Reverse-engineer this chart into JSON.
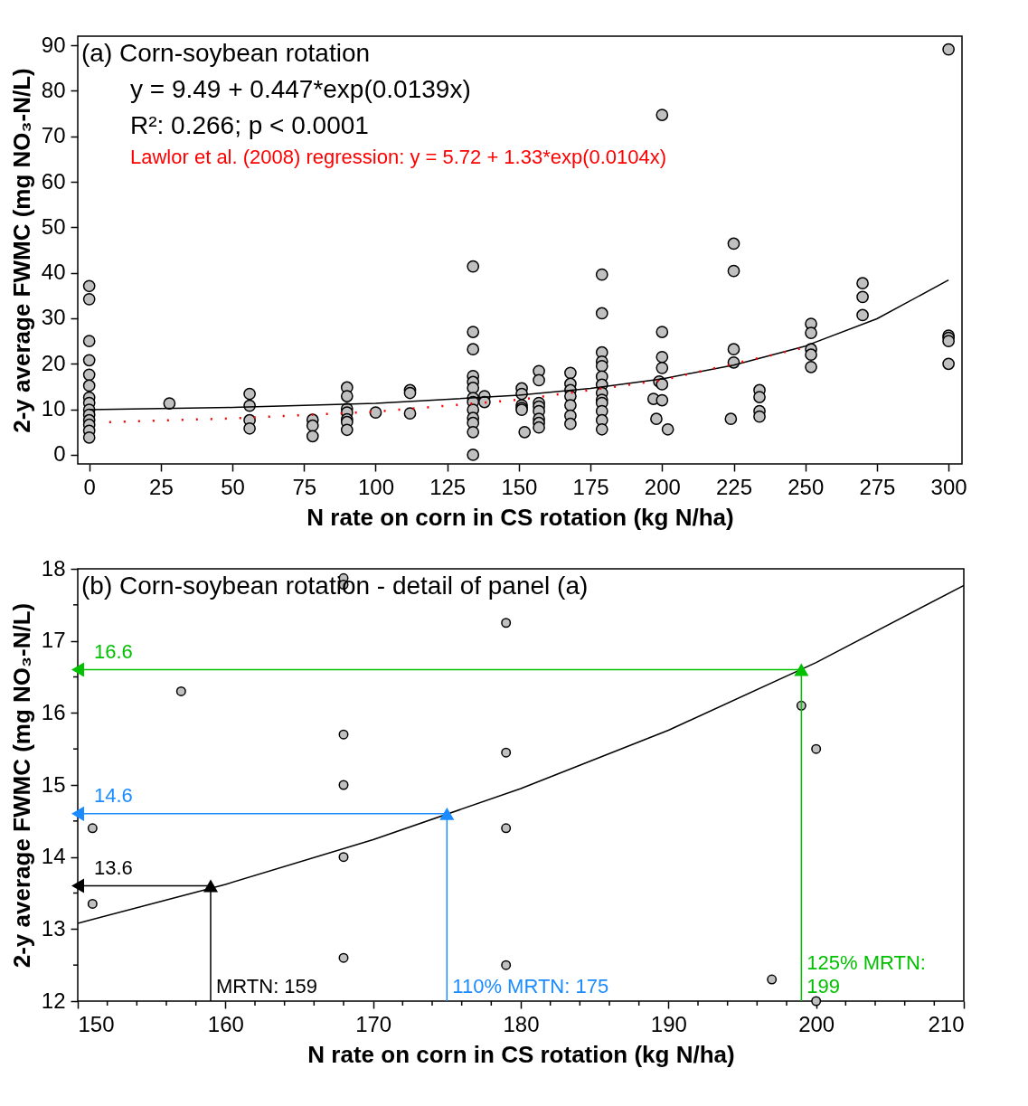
{
  "chart_data": [
    {
      "type": "scatter",
      "title": "(a) Corn-soybean rotation",
      "xlabel": "N rate on corn in CS rotation (kg N/ha)",
      "ylabel": "2-y average FWMC (mg NO₃-N/L)",
      "annotations": [
        "y = 9.49 + 0.447*exp(0.0139x)",
        "R²: 0.266; p < 0.0001",
        "Lawlor et al. (2008) regression: y = 5.72 + 1.33*exp(0.0104x)"
      ],
      "xlim": [
        -4,
        304.7
      ],
      "ylim": [
        -2,
        92
      ],
      "xticks": [
        0,
        25,
        50,
        75,
        100,
        125,
        150,
        175,
        200,
        225,
        250,
        275,
        300
      ],
      "yticks": [
        0,
        10,
        20,
        30,
        40,
        50,
        60,
        70,
        80,
        90
      ],
      "grid": false,
      "marker": "circle",
      "series": [
        {
          "color": "#c0c0c0",
          "x": [
            0,
            0,
            0,
            0,
            0,
            0,
            0,
            0,
            0,
            0,
            0,
            0,
            0,
            0,
            28,
            56,
            56,
            56,
            56,
            78,
            78,
            78,
            90,
            90,
            90,
            90,
            90,
            90,
            90,
            100,
            112,
            112,
            112,
            134,
            134,
            134,
            134,
            134,
            134,
            134,
            134,
            134,
            134,
            134,
            134,
            134,
            138,
            138,
            151,
            151,
            151,
            151,
            151,
            152,
            157,
            157,
            157,
            157,
            157,
            157,
            157,
            157,
            168,
            168,
            168,
            168,
            168,
            168,
            168,
            179,
            179,
            179,
            179,
            179,
            179,
            179,
            179,
            179,
            179,
            179,
            179,
            179,
            197,
            198,
            199,
            200,
            200,
            200,
            200,
            200,
            200,
            202,
            224,
            225,
            225,
            225,
            225,
            234,
            234,
            234,
            234,
            252,
            252,
            252,
            252,
            252,
            270,
            270,
            270,
            300,
            300,
            300,
            300,
            300
          ],
          "values": [
            37.1,
            34.2,
            25.0,
            20.8,
            17.6,
            15.2,
            12.6,
            11.4,
            9.9,
            8.8,
            7.6,
            6.6,
            5.3,
            3.8,
            11.3,
            13.4,
            10.8,
            7.6,
            5.8,
            7.7,
            6.4,
            4.1,
            14.8,
            12.9,
            10.1,
            9.3,
            7.8,
            7.2,
            5.5,
            9.3,
            14.2,
            13.6,
            9.1,
            41.4,
            27.0,
            23.2,
            17.3,
            16.0,
            14.7,
            12.5,
            11.6,
            9.9,
            8.1,
            7.0,
            5.0,
            0,
            12.9,
            11.6,
            14.6,
            13.4,
            10.9,
            10.3,
            9.9,
            5.0,
            18.4,
            16.4,
            11.4,
            10.6,
            9.6,
            7.9,
            7.0,
            6.0,
            18.0,
            15.6,
            14.2,
            12.9,
            10.9,
            8.6,
            6.8,
            39.6,
            31.1,
            22.5,
            20.5,
            19.5,
            17.2,
            15.4,
            13.6,
            12.1,
            11.4,
            9.6,
            7.6,
            5.6,
            12.3,
            7.9,
            16.1,
            74.7,
            27.0,
            21.5,
            19.1,
            15.5,
            12.0,
            5.6,
            7.9,
            46.4,
            40.4,
            23.2,
            20.3,
            14.2,
            12.7,
            9.6,
            8.4,
            28.8,
            26.8,
            23.2,
            22.0,
            19.3,
            37.7,
            34.7,
            30.7,
            89.1,
            26.2,
            25.7,
            25.0,
            20.0
          ]
        },
        {
          "type": "line",
          "color": "#000000",
          "marker": "none",
          "line_style": "solid",
          "x": [
            0,
            50,
            100,
            150,
            175,
            200,
            225,
            250,
            275,
            300
          ],
          "values": [
            9.9,
            10.4,
            11.3,
            13.1,
            14.6,
            16.7,
            19.7,
            23.9,
            29.9,
            38.4
          ]
        },
        {
          "type": "line",
          "color": "#ff0000",
          "marker": "none",
          "line_style": "dotted",
          "x": [
            7,
            50,
            100,
            150,
            200,
            250
          ],
          "values": [
            7.2,
            8.0,
            9.5,
            12.1,
            16.4,
            23.6
          ]
        }
      ]
    },
    {
      "type": "scatter",
      "title": "(b) Corn-soybean rotation - detail of panel (a)",
      "xlabel": "N rate on corn in CS rotation (kg N/ha)",
      "ylabel": "2-y average FWMC (mg NO₃-N/L)",
      "annotations": [
        "MRTN: 159",
        "13.6",
        "110% MRTN: 175",
        "14.6",
        "125% MRTN: 199",
        "16.6"
      ],
      "xlim": [
        150,
        210
      ],
      "ylim": [
        12,
        18
      ],
      "xticks": [
        150,
        {
          "value": 152,
          "label": null
        },
        {
          "value": 154,
          "label": null
        },
        {
          "value": 156,
          "label": null
        },
        {
          "value": 158,
          "label": null
        },
        160,
        {
          "value": 162,
          "label": null
        },
        {
          "value": 164,
          "label": null
        },
        {
          "value": 166,
          "label": null
        },
        {
          "value": 168,
          "label": null
        },
        170,
        {
          "value": 172,
          "label": null
        },
        {
          "value": 174,
          "label": null
        },
        {
          "value": 176,
          "label": null
        },
        {
          "value": 178,
          "label": null
        },
        180,
        {
          "value": 182,
          "label": null
        },
        {
          "value": 184,
          "label": null
        },
        {
          "value": 186,
          "label": null
        },
        {
          "value": 188,
          "label": null
        },
        190,
        {
          "value": 192,
          "label": null
        },
        {
          "value": 194,
          "label": null
        },
        {
          "value": 196,
          "label": null
        },
        {
          "value": 198,
          "label": null
        },
        200,
        {
          "value": 202,
          "label": null
        },
        {
          "value": 204,
          "label": null
        },
        {
          "value": 206,
          "label": null
        },
        {
          "value": 208,
          "label": null
        },
        210
      ],
      "yticks": [
        {
          "value": 12,
          "label": "12"
        },
        {
          "value": 12.5,
          "label": null
        },
        {
          "value": 13,
          "label": "13"
        },
        {
          "value": 13.5,
          "label": null
        },
        {
          "value": 14,
          "label": "14"
        },
        {
          "value": 14.5,
          "label": null
        },
        {
          "value": 15,
          "label": "15"
        },
        {
          "value": 15.5,
          "label": null
        },
        {
          "value": 16,
          "label": "16"
        },
        {
          "value": 16.5,
          "label": null
        },
        {
          "value": 17,
          "label": "17"
        },
        {
          "value": 17.5,
          "label": null
        },
        {
          "value": 18,
          "label": "18"
        }
      ],
      "grid": false,
      "marker": "circle",
      "series": [
        {
          "color": "#c0c0c0",
          "x": [
            151,
            151,
            157,
            168,
            168,
            168,
            168,
            168,
            168,
            179,
            179,
            179,
            179,
            197,
            199,
            200,
            200
          ],
          "values": [
            14.4,
            13.35,
            16.3,
            17.87,
            17.78,
            15.7,
            15.0,
            14.0,
            12.6,
            17.25,
            15.45,
            14.4,
            12.5,
            12.3,
            16.1,
            15.5,
            12.0
          ]
        },
        {
          "type": "line",
          "color": "#000000",
          "marker": "none",
          "line_style": "solid",
          "x": [
            150,
            160,
            170,
            180,
            190,
            200,
            210
          ],
          "values": [
            13.08,
            13.62,
            14.24,
            14.95,
            15.76,
            16.7,
            17.77
          ]
        },
        {
          "type": "line",
          "color": "#000000",
          "marker": "triangle",
          "line_style": "solid",
          "x": [
            159,
            159,
            150
          ],
          "values": [
            12,
            13.6,
            13.6
          ]
        },
        {
          "type": "line",
          "color": "#1a8cff",
          "marker": "triangle",
          "line_style": "solid",
          "x": [
            175,
            175,
            150
          ],
          "values": [
            12,
            14.6,
            14.6
          ]
        },
        {
          "type": "line",
          "color": "#00c000",
          "marker": "triangle",
          "line_style": "solid",
          "x": [
            199,
            199,
            150
          ],
          "values": [
            12,
            16.6,
            16.6
          ]
        }
      ]
    }
  ]
}
